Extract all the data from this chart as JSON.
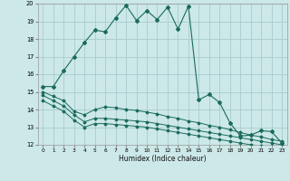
{
  "xlabel": "Humidex (Indice chaleur)",
  "xlim": [
    -0.5,
    23.5
  ],
  "ylim": [
    12,
    20
  ],
  "yticks": [
    12,
    13,
    14,
    15,
    16,
    17,
    18,
    19,
    20
  ],
  "xticks": [
    0,
    1,
    2,
    3,
    4,
    5,
    6,
    7,
    8,
    9,
    10,
    11,
    12,
    13,
    14,
    15,
    16,
    17,
    18,
    19,
    20,
    21,
    22,
    23
  ],
  "bg_color": "#cce8e8",
  "grid_color": "#aacccc",
  "line_color": "#1a6b5a",
  "series": [
    {
      "x": [
        0,
        1,
        2,
        3,
        4,
        5,
        6,
        7,
        8,
        9,
        10,
        11,
        12,
        13,
        14,
        15,
        16,
        17,
        18,
        19,
        20,
        21,
        22,
        23
      ],
      "y": [
        15.3,
        15.3,
        16.2,
        17.0,
        17.8,
        18.5,
        18.4,
        19.2,
        19.9,
        19.05,
        19.6,
        19.1,
        19.8,
        18.55,
        19.85,
        14.55,
        14.85,
        14.4,
        13.25,
        12.5,
        12.55,
        12.8,
        12.75,
        12.1
      ]
    },
    {
      "x": [
        0,
        1,
        2,
        3,
        4,
        5,
        6,
        7,
        8,
        9,
        10,
        11,
        12,
        13,
        14,
        15,
        16,
        17,
        18,
        19,
        20,
        21,
        22,
        23
      ],
      "y": [
        15.0,
        14.75,
        14.5,
        13.9,
        13.7,
        14.0,
        14.15,
        14.1,
        14.0,
        13.95,
        13.85,
        13.75,
        13.6,
        13.5,
        13.35,
        13.25,
        13.1,
        13.0,
        12.85,
        12.7,
        12.55,
        12.45,
        12.3,
        12.2
      ]
    },
    {
      "x": [
        0,
        1,
        2,
        3,
        4,
        5,
        6,
        7,
        8,
        9,
        10,
        11,
        12,
        13,
        14,
        15,
        16,
        17,
        18,
        19,
        20,
        21,
        22,
        23
      ],
      "y": [
        14.8,
        14.5,
        14.2,
        13.7,
        13.3,
        13.5,
        13.5,
        13.45,
        13.4,
        13.35,
        13.3,
        13.2,
        13.1,
        13.0,
        12.9,
        12.8,
        12.7,
        12.6,
        12.5,
        12.4,
        12.3,
        12.2,
        12.1,
        12.0
      ]
    },
    {
      "x": [
        0,
        1,
        2,
        3,
        4,
        5,
        6,
        7,
        8,
        9,
        10,
        11,
        12,
        13,
        14,
        15,
        16,
        17,
        18,
        19,
        20,
        21,
        22,
        23
      ],
      "y": [
        14.5,
        14.2,
        13.9,
        13.4,
        13.0,
        13.2,
        13.2,
        13.15,
        13.1,
        13.05,
        13.0,
        12.9,
        12.8,
        12.7,
        12.6,
        12.5,
        12.4,
        12.3,
        12.2,
        12.1,
        12.0,
        11.95,
        11.9,
        11.85
      ]
    }
  ]
}
